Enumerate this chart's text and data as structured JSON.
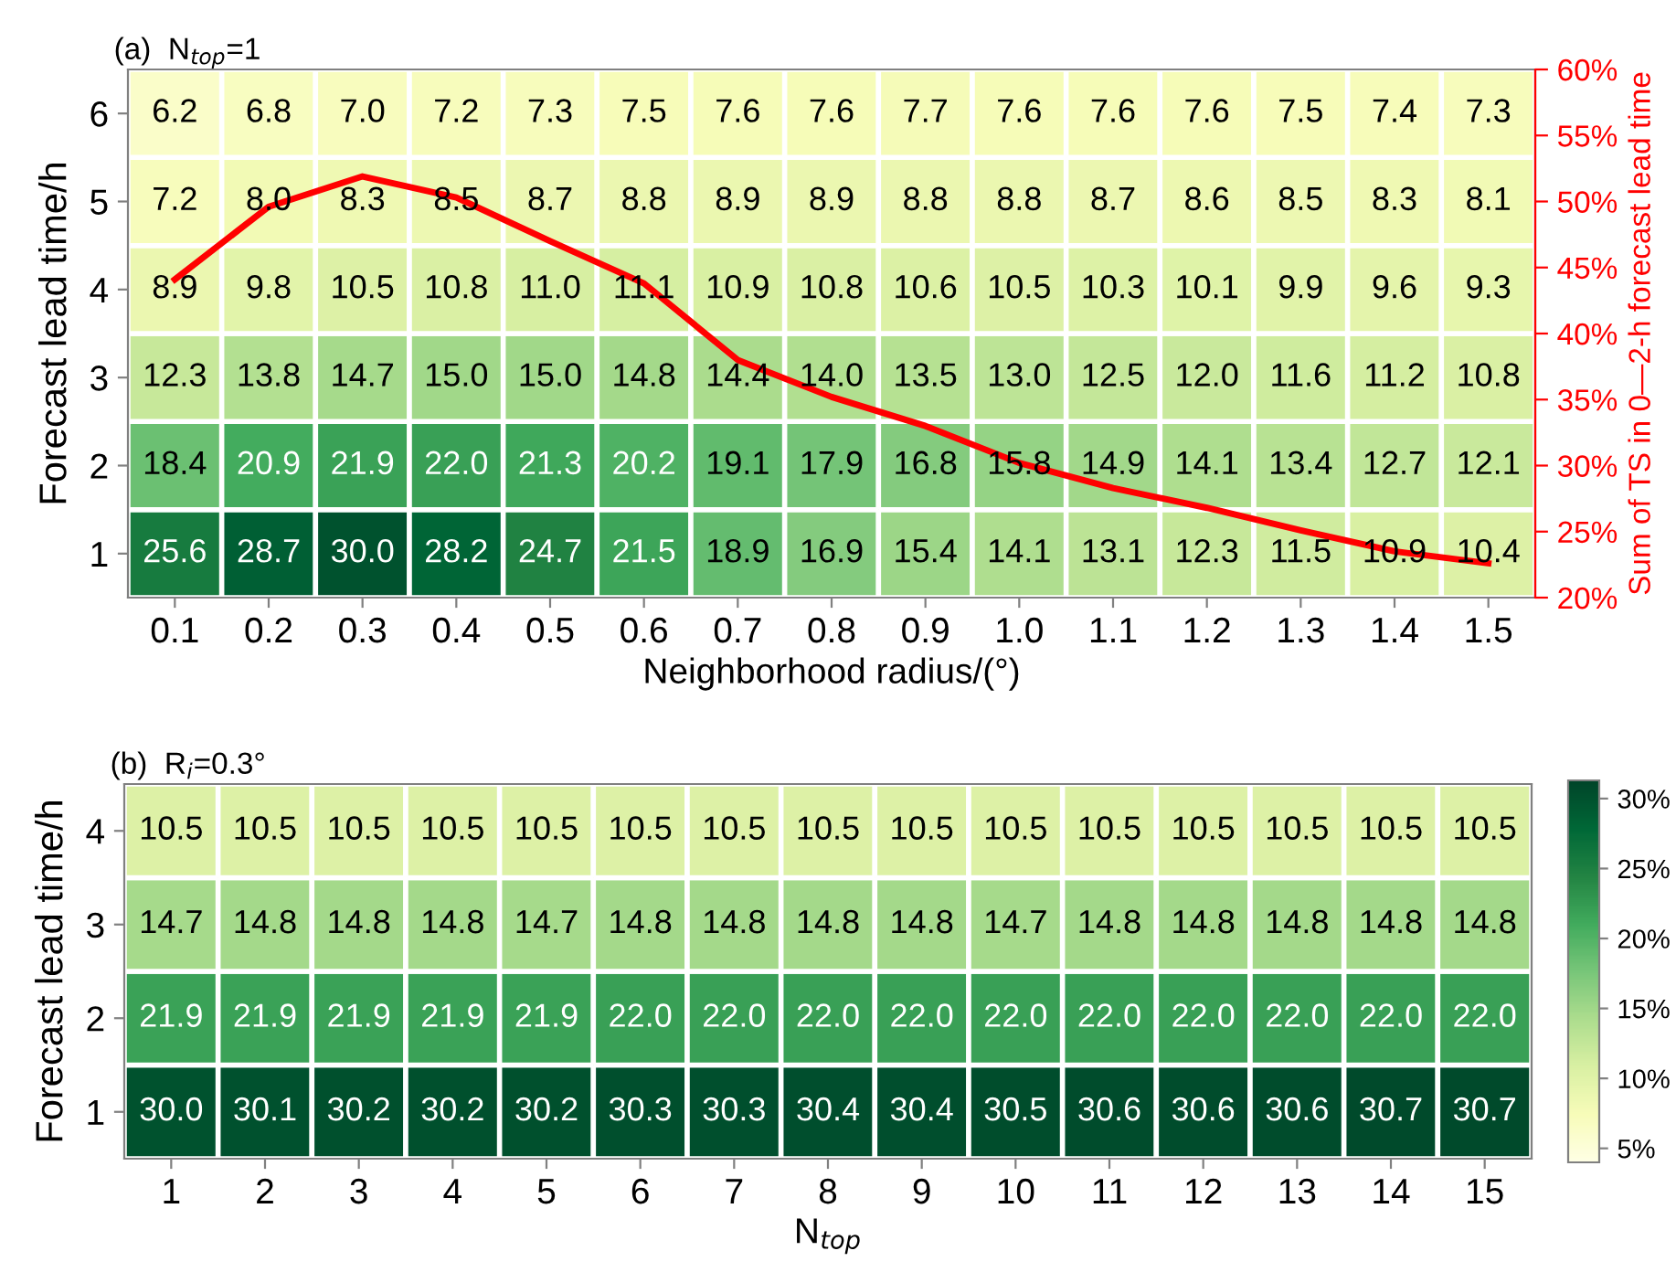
{
  "chart_data": [
    {
      "type": "heatmap",
      "title": "(a)  N$_{top}$=1",
      "xlabel": "Neighborhood radius/(°)",
      "ylabel": "Forecast lead time/h",
      "y2label": "Sum of TS in 0—2-h forecast lead time",
      "categories": [
        "0.1",
        "0.2",
        "0.3",
        "0.4",
        "0.5",
        "0.6",
        "0.7",
        "0.8",
        "0.9",
        "1.0",
        "1.1",
        "1.2",
        "1.3",
        "1.4",
        "1.5"
      ],
      "y_categories": [
        "6",
        "5",
        "4",
        "3",
        "2",
        "1"
      ],
      "cells": [
        [
          6.2,
          6.8,
          7.0,
          7.2,
          7.3,
          7.5,
          7.6,
          7.6,
          7.7,
          7.6,
          7.6,
          7.6,
          7.5,
          7.4,
          7.3
        ],
        [
          7.2,
          8.0,
          8.3,
          8.5,
          8.7,
          8.8,
          8.9,
          8.9,
          8.8,
          8.8,
          8.7,
          8.6,
          8.5,
          8.3,
          8.1
        ],
        [
          8.9,
          9.8,
          10.5,
          10.8,
          11.0,
          11.1,
          10.9,
          10.8,
          10.6,
          10.5,
          10.3,
          10.1,
          9.9,
          9.6,
          9.3
        ],
        [
          12.3,
          13.8,
          14.7,
          15.0,
          15.0,
          14.8,
          14.4,
          14.0,
          13.5,
          13.0,
          12.5,
          12.0,
          11.6,
          11.2,
          10.8
        ],
        [
          18.4,
          20.9,
          21.9,
          22.0,
          21.3,
          20.2,
          19.1,
          17.9,
          16.8,
          15.8,
          14.9,
          14.1,
          13.4,
          12.7,
          12.1
        ],
        [
          25.6,
          28.7,
          30.0,
          28.2,
          24.7,
          21.5,
          18.9,
          16.9,
          15.4,
          14.1,
          13.1,
          12.3,
          11.5,
          10.9,
          10.4
        ]
      ],
      "cell_labels": [
        [
          "6.2",
          "6.8",
          "7.0",
          "7.2",
          "7.3",
          "7.5",
          "7.6",
          "7.6",
          "7.7",
          "7.6",
          "7.6",
          "7.6",
          "7.5",
          "7.4",
          "7.3"
        ],
        [
          "7.2",
          "8.0",
          "8.3",
          "8.5",
          "8.7",
          "8.8",
          "8.9",
          "8.9",
          "8.8",
          "8.8",
          "8.7",
          "8.6",
          "8.5",
          "8.3",
          "8.1"
        ],
        [
          "8.9",
          "9.8",
          "10.5",
          "10.8",
          "11.0",
          "11.1",
          "10.9",
          "10.8",
          "10.6",
          "10.5",
          "10.3",
          "10.1",
          "9.9",
          "9.6",
          "9.3"
        ],
        [
          "12.3",
          "13.8",
          "14.7",
          "15.0",
          "15.0",
          "14.8",
          "14.4",
          "14.0",
          "13.5",
          "13.0",
          "12.5",
          "12.0",
          "11.6",
          "11.2",
          "10.8"
        ],
        [
          "18.4",
          "20.9",
          "21.9",
          "22.0",
          "21.3",
          "20.2",
          "19.1",
          "17.9",
          "16.8",
          "15.8",
          "14.9",
          "14.1",
          "13.4",
          "12.7",
          "12.1"
        ],
        [
          "25.6",
          "28.7",
          "30.0",
          "28.2",
          "24.7",
          "21.5",
          "18.9",
          "16.9",
          "15.4",
          "14.1",
          "13.1",
          "12.3",
          "11.5",
          "10.9",
          "10.4"
        ]
      ],
      "series": [
        {
          "type": "line",
          "axis": "y2",
          "color": "#ff0000",
          "values": [
            44.1,
            49.6,
            51.9,
            50.3,
            47.0,
            43.8,
            38.0,
            35.2,
            33.0,
            30.2,
            28.3,
            26.8,
            25.1,
            23.5,
            22.6
          ]
        }
      ],
      "y2lim": [
        20,
        60
      ],
      "y2ticks": [
        {
          "value": 20,
          "label": "20%"
        },
        {
          "value": 25,
          "label": "25%"
        },
        {
          "value": 30,
          "label": "30%"
        },
        {
          "value": 35,
          "label": "35%"
        },
        {
          "value": 40,
          "label": "40%"
        },
        {
          "value": 45,
          "label": "45%"
        },
        {
          "value": 50,
          "label": "50%"
        },
        {
          "value": 55,
          "label": "55%"
        },
        {
          "value": 60,
          "label": "60%"
        }
      ],
      "grid": false
    },
    {
      "type": "heatmap",
      "title": "(b)  R$_{i}$=0.3°",
      "xlabel": "N$_{top}$",
      "ylabel": "Forecast lead time/h",
      "categories": [
        "1",
        "2",
        "3",
        "4",
        "5",
        "6",
        "7",
        "8",
        "9",
        "10",
        "11",
        "12",
        "13",
        "14",
        "15"
      ],
      "y_categories": [
        "4",
        "3",
        "2",
        "1"
      ],
      "cells": [
        [
          10.5,
          10.5,
          10.5,
          10.5,
          10.5,
          10.5,
          10.5,
          10.5,
          10.5,
          10.5,
          10.5,
          10.5,
          10.5,
          10.5,
          10.5
        ],
        [
          14.7,
          14.8,
          14.8,
          14.8,
          14.7,
          14.8,
          14.8,
          14.8,
          14.8,
          14.7,
          14.8,
          14.8,
          14.8,
          14.8,
          14.8
        ],
        [
          21.9,
          21.9,
          21.9,
          21.9,
          21.9,
          22.0,
          22.0,
          22.0,
          22.0,
          22.0,
          22.0,
          22.0,
          22.0,
          22.0,
          22.0
        ],
        [
          30.0,
          30.1,
          30.2,
          30.2,
          30.2,
          30.3,
          30.3,
          30.4,
          30.4,
          30.5,
          30.6,
          30.6,
          30.6,
          30.7,
          30.7
        ]
      ],
      "cell_labels": [
        [
          "10.5",
          "10.5",
          "10.5",
          "10.5",
          "10.5",
          "10.5",
          "10.5",
          "10.5",
          "10.5",
          "10.5",
          "10.5",
          "10.5",
          "10.5",
          "10.5",
          "10.5"
        ],
        [
          "14.7",
          "14.8",
          "14.8",
          "14.8",
          "14.7",
          "14.8",
          "14.8",
          "14.8",
          "14.8",
          "14.7",
          "14.8",
          "14.8",
          "14.8",
          "14.8",
          "14.8"
        ],
        [
          "21.9",
          "21.9",
          "21.9",
          "21.9",
          "21.9",
          "22.0",
          "22.0",
          "22.0",
          "22.0",
          "22.0",
          "22.0",
          "22.0",
          "22.0",
          "22.0",
          "22.0"
        ],
        [
          "30.0",
          "30.1",
          "30.2",
          "30.2",
          "30.2",
          "30.3",
          "30.3",
          "30.4",
          "30.4",
          "30.5",
          "30.6",
          "30.6",
          "30.6",
          "30.7",
          "30.7"
        ]
      ],
      "clim": [
        4,
        31.3
      ],
      "cticks": [
        {
          "value": 5,
          "label": "5%"
        },
        {
          "value": 10,
          "label": "10%"
        },
        {
          "value": 15,
          "label": "15%"
        },
        {
          "value": 20,
          "label": "20%"
        },
        {
          "value": 25,
          "label": "25%"
        },
        {
          "value": 30,
          "label": "30%"
        }
      ],
      "grid": false
    }
  ]
}
